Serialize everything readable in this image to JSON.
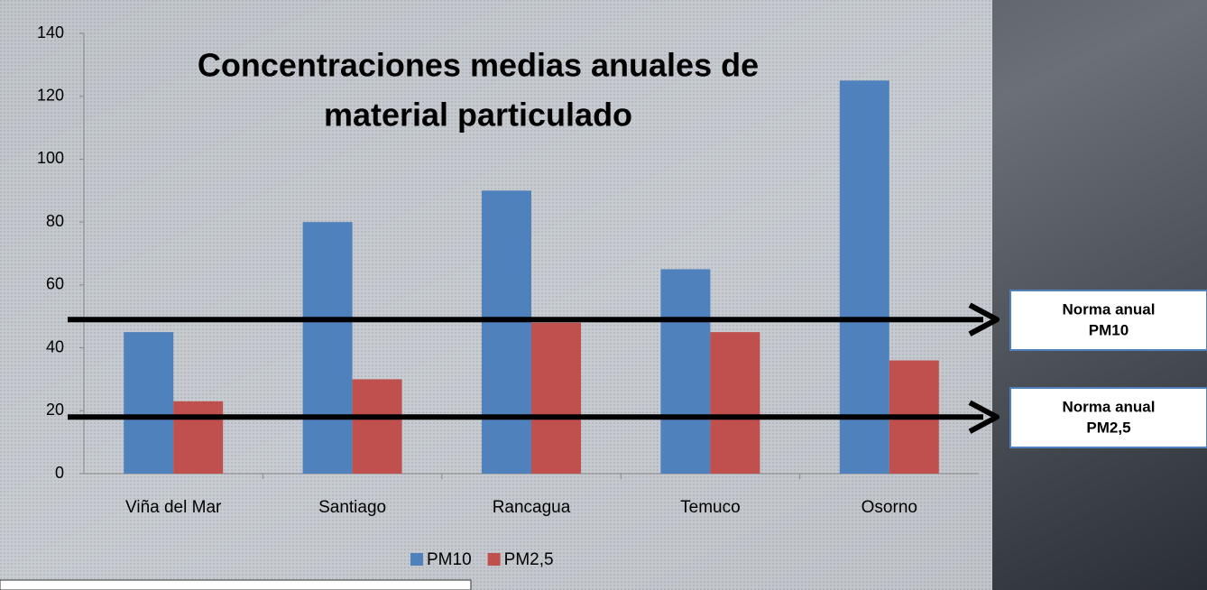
{
  "chart_data": {
    "type": "bar",
    "title": [
      "Concentraciones medias anuales de",
      "material particulado"
    ],
    "categories": [
      "Viña del Mar",
      "Santiago",
      "Rancagua",
      "Temuco",
      "Osorno"
    ],
    "series": [
      {
        "name": "PM10",
        "color": "#4f81bd",
        "values": [
          45,
          80,
          90,
          65,
          125
        ]
      },
      {
        "name": "PM2,5",
        "color": "#c0504d",
        "values": [
          23,
          30,
          48,
          45,
          36
        ]
      }
    ],
    "ylim": [
      0,
      140
    ],
    "yticks": [
      0,
      20,
      40,
      60,
      80,
      100,
      120,
      140
    ],
    "grid": false,
    "legend": "bottom",
    "reference_lines": [
      {
        "label": [
          "Norma anual",
          "PM10"
        ],
        "value": 49
      },
      {
        "label": [
          "Norma anual",
          "PM2,5"
        ],
        "value": 18
      }
    ]
  }
}
